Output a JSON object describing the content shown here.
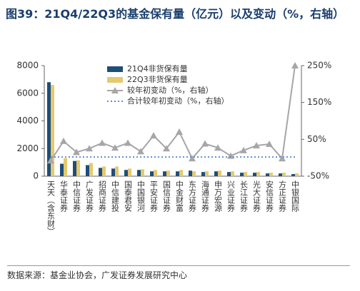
{
  "chart_data": {
    "type": "bar",
    "title": "图39：21Q4/22Q3的基金保有量（亿元）以及变动（%，右轴）",
    "source": "数据来源：基金业协会，广发证券发展研究中心",
    "categories": [
      "天天（含东财）",
      "华泰证券",
      "中信证券",
      "广发证券",
      "招商证券",
      "中信建投",
      "国泰君安",
      "中国银河",
      "平安证券",
      "国信证券",
      "中金财富",
      "东方证券",
      "海通证券",
      "申万宏源",
      "兴业证券",
      "长江证券",
      "光大证券",
      "安信证券",
      "方正证券",
      "中银国际"
    ],
    "series": [
      {
        "name": "21Q4非货保有量",
        "color": "#1f4e79",
        "values": [
          6800,
          900,
          1100,
          800,
          600,
          550,
          450,
          450,
          350,
          350,
          350,
          400,
          300,
          350,
          300,
          250,
          250,
          200,
          200,
          150
        ]
      },
      {
        "name": "22Q3非货保有量",
        "color": "#e6c96b",
        "values": [
          6600,
          1300,
          1150,
          950,
          700,
          700,
          550,
          500,
          450,
          400,
          450,
          350,
          350,
          400,
          350,
          300,
          300,
          250,
          250,
          200
        ]
      },
      {
        "name": "较年初变动（%，右轴）",
        "color": "#a6a6a6",
        "type": "line",
        "axis": "y2",
        "values": [
          -8,
          45,
          15,
          25,
          40,
          27,
          40,
          17,
          60,
          25,
          70,
          -2,
          38,
          27,
          5,
          20,
          33,
          37,
          -2,
          250
        ]
      },
      {
        "name": "合计较年初变动（%，右轴）",
        "color": "#5b8ed6",
        "type": "dotted",
        "axis": "y2",
        "values": [
          2,
          2,
          2,
          2,
          2,
          2,
          2,
          2,
          2,
          2,
          2,
          2,
          2,
          2,
          2,
          2,
          2,
          2,
          2,
          2
        ]
      }
    ],
    "ylim": [
      0,
      8000
    ],
    "yticks": [
      0,
      2000,
      4000,
      6000,
      8000
    ],
    "y2lim": [
      -50,
      250
    ],
    "y2ticks": [
      {
        "value": -50,
        "label": "-50%"
      },
      {
        "value": 50,
        "label": "50%"
      },
      {
        "value": 150,
        "label": "150%"
      },
      {
        "value": 250,
        "label": "250%"
      }
    ]
  }
}
